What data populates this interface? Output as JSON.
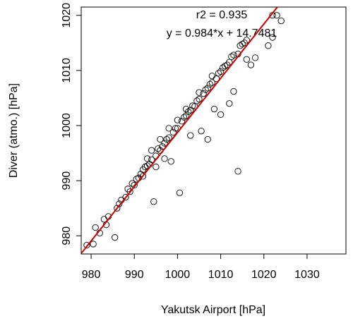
{
  "chart_data": {
    "type": "scatter",
    "title_lines": [
      "r2 =  0.935",
      "y = 0.984*x + 14.7481"
    ],
    "x_label": "Yakutsk Airport [hPa]",
    "y_label": "Diver (atmo.) [hPa]",
    "xlim": [
      977.7,
      1039
    ],
    "ylim": [
      976.7,
      1021.5
    ],
    "xticks": [
      980,
      990,
      1000,
      1010,
      1020,
      1030
    ],
    "yticks": [
      980,
      990,
      1000,
      1010,
      1020
    ],
    "color": "#000000",
    "regression_line": {
      "slope": 0.984,
      "intercept": 14.7481,
      "color": "#cc0000"
    },
    "x": [
      979,
      980.5,
      981,
      982,
      983,
      983.5,
      984,
      985.5,
      986,
      986.5,
      987,
      988,
      988.5,
      989,
      989.5,
      990,
      990.5,
      991,
      991.5,
      992,
      992,
      992.5,
      993,
      993,
      993.5,
      994,
      994,
      994.5,
      995,
      995,
      995.5,
      996,
      996,
      996.5,
      997,
      997,
      997.5,
      998,
      998,
      998.5,
      999,
      999.5,
      1000,
      1000,
      1000.5,
      1001,
      1001.5,
      1002,
      1002,
      1002.5,
      1003,
      1003,
      1003.5,
      1004,
      1004.5,
      1005,
      1005,
      1005.5,
      1006,
      1006.5,
      1007,
      1007,
      1007.5,
      1008,
      1008,
      1008.5,
      1009,
      1009.5,
      1010,
      1010,
      1010.5,
      1011,
      1011.5,
      1012,
      1012,
      1012.5,
      1013,
      1013,
      1014,
      1014,
      1014.5,
      1015,
      1015.5,
      1016,
      1016,
      1017,
      1018,
      1021,
      1022,
      1022,
      1023,
      1024
    ],
    "y": [
      978.3,
      978.5,
      981.5,
      980.5,
      983,
      982,
      983.5,
      979.7,
      985,
      985.8,
      986.5,
      987,
      988.5,
      988,
      989.5,
      989.2,
      990.3,
      990.5,
      991.2,
      992,
      990.8,
      992.5,
      992.7,
      994,
      993,
      993.8,
      995.5,
      986.2,
      994.5,
      992.5,
      995.8,
      995.5,
      997.5,
      996.2,
      996.8,
      994,
      997.5,
      997.8,
      999.5,
      993.5,
      998.8,
      999.5,
      999.5,
      1001,
      987.8,
      1000.8,
      1001.5,
      1001.8,
      1003,
      1002.5,
      1002.8,
      998.2,
      1003.6,
      1003.5,
      1004.5,
      1004.8,
      1006,
      999,
      1005.8,
      1006.5,
      1006.8,
      997.5,
      1007.5,
      1007.8,
      1009,
      1003,
      1008.5,
      1009.5,
      1009.8,
      1002,
      1010.5,
      1010.8,
      1011,
      1011.5,
      1004,
      1012.5,
      1012.8,
      1006.2,
      991.7,
      1013,
      1014.5,
      1014.8,
      1015,
      1015.5,
      1012,
      1011,
      1012.3,
      1014.5,
      1016,
      1020,
      1020,
      1019
    ]
  }
}
